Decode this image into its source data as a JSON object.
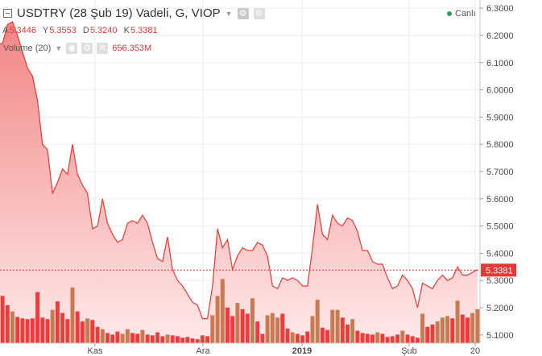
{
  "header": {
    "title": "USDTRY (28 Şub 19) Vadeli, G, VIOP",
    "status": "Canlı"
  },
  "ohlc": {
    "open_label": "A",
    "open": "5.3446",
    "high_label": "Y",
    "high": "5.3553",
    "low_label": "D",
    "low": "5.3240",
    "close_label": "K",
    "close": "5.3381"
  },
  "volume_indicator": {
    "name": "Volume (20)",
    "value": "656.353M"
  },
  "colors": {
    "line": "#e53935",
    "area_top": "#f28585",
    "area_bottom": "#ffe9e9",
    "volume_up": "#c87a52",
    "volume_down": "#ee3b3b",
    "last_price_tag": "#e53935"
  },
  "chart_data": {
    "type": "area",
    "ylim": [
      5.07,
      6.33
    ],
    "y_ticks": [
      "5.1000",
      "5.2000",
      "5.3000",
      "5.4000",
      "5.5000",
      "5.6000",
      "5.7000",
      "5.8000",
      "5.9000",
      "6.0000",
      "6.1000",
      "6.2000",
      "6.3000"
    ],
    "x_tick_labels": [
      "Kas",
      "Ara",
      "2019",
      "Şub",
      "20"
    ],
    "last_price": "5.3381",
    "grid": true,
    "price_series": {
      "name": "USDTRY",
      "values": [
        6.17,
        6.24,
        6.25,
        6.2,
        6.14,
        6.08,
        6.05,
        5.96,
        5.8,
        5.78,
        5.62,
        5.66,
        5.71,
        5.69,
        5.8,
        5.69,
        5.65,
        5.62,
        5.49,
        5.5,
        5.6,
        5.51,
        5.47,
        5.44,
        5.45,
        5.51,
        5.52,
        5.51,
        5.54,
        5.51,
        5.44,
        5.38,
        5.37,
        5.46,
        5.34,
        5.3,
        5.28,
        5.25,
        5.22,
        5.21,
        5.16,
        5.16,
        5.28,
        5.49,
        5.42,
        5.45,
        5.34,
        5.39,
        5.42,
        5.41,
        5.41,
        5.44,
        5.43,
        5.39,
        5.28,
        5.27,
        5.31,
        5.3,
        5.31,
        5.3,
        5.28,
        5.28,
        5.42,
        5.58,
        5.47,
        5.45,
        5.54,
        5.51,
        5.5,
        5.53,
        5.52,
        5.48,
        5.41,
        5.41,
        5.37,
        5.36,
        5.36,
        5.31,
        5.27,
        5.28,
        5.32,
        5.3,
        5.27,
        5.2,
        5.29,
        5.28,
        5.27,
        5.3,
        5.32,
        5.3,
        5.31,
        5.35,
        5.32,
        5.32,
        5.33,
        5.34
      ]
    },
    "volume_series": {
      "name": "Volume (20)",
      "values": [
        0.61,
        0.49,
        0.41,
        0.34,
        0.32,
        0.31,
        0.32,
        0.66,
        0.33,
        0.31,
        0.43,
        0.54,
        0.39,
        0.31,
        0.72,
        0.41,
        0.28,
        0.32,
        0.3,
        0.21,
        0.18,
        0.13,
        0.11,
        0.15,
        0.12,
        0.18,
        0.13,
        0.12,
        0.17,
        0.11,
        0.1,
        0.14,
        0.09,
        0.11,
        0.1,
        0.09,
        0.07,
        0.08,
        0.06,
        0.05,
        0.1,
        0.09,
        0.36,
        0.61,
        0.83,
        0.46,
        0.35,
        0.52,
        0.44,
        0.38,
        0.58,
        0.28,
        0.12,
        0.36,
        0.39,
        0.33,
        0.38,
        0.19,
        0.14,
        0.12,
        0.1,
        0.15,
        0.35,
        0.56,
        0.2,
        0.17,
        0.43,
        0.43,
        0.33,
        0.24,
        0.31,
        0.16,
        0.13,
        0.12,
        0.11,
        0.14,
        0.12,
        0.08,
        0.09,
        0.11,
        0.16,
        0.11,
        0.09,
        0.07,
        0.38,
        0.21,
        0.24,
        0.28,
        0.33,
        0.35,
        0.32,
        0.55,
        0.37,
        0.33,
        0.39,
        0.44
      ],
      "up": [
        false,
        false,
        true,
        false,
        false,
        false,
        false,
        false,
        false,
        false,
        true,
        false,
        false,
        false,
        true,
        false,
        false,
        true,
        false,
        false,
        true,
        false,
        false,
        false,
        true,
        true,
        false,
        false,
        true,
        false,
        false,
        false,
        false,
        true,
        false,
        false,
        false,
        false,
        false,
        false,
        false,
        false,
        true,
        true,
        true,
        false,
        false,
        true,
        false,
        false,
        true,
        false,
        false,
        true,
        true,
        true,
        false,
        false,
        true,
        false,
        false,
        false,
        true,
        true,
        false,
        false,
        true,
        true,
        false,
        false,
        true,
        false,
        false,
        false,
        false,
        true,
        false,
        false,
        false,
        false,
        true,
        false,
        false,
        false,
        true,
        false,
        false,
        true,
        true,
        true,
        false,
        true,
        false,
        false,
        true,
        true
      ]
    }
  }
}
